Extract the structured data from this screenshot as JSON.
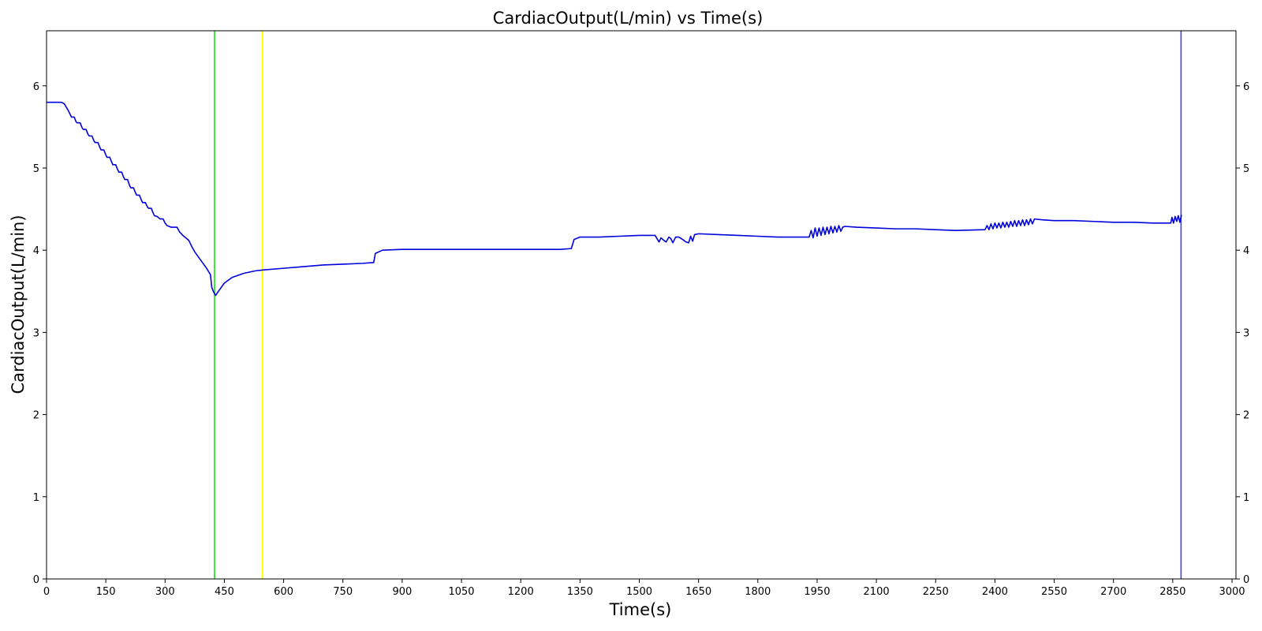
{
  "chart_data": {
    "type": "line",
    "title": "CardiacOutput(L/min) vs Time(s)",
    "xlabel": "Time(s)",
    "ylabel": "CardiacOutput(L/min)",
    "xlim": [
      0,
      3010
    ],
    "ylim": [
      0,
      6.67
    ],
    "x_ticks": [
      0,
      150,
      300,
      450,
      600,
      750,
      900,
      1050,
      1200,
      1350,
      1500,
      1650,
      1800,
      1950,
      2100,
      2250,
      2400,
      2550,
      2700,
      2850,
      3000
    ],
    "y_ticks": [
      0,
      1,
      2,
      3,
      4,
      5,
      6
    ],
    "right_y_ticks": true,
    "grid": false,
    "vertical_lines": [
      {
        "x": 425,
        "color": "#00ee00"
      },
      {
        "x": 546,
        "color": "#ffff00"
      },
      {
        "x": 2871,
        "color": "#4444dd"
      }
    ],
    "series": [
      {
        "color": "#0000dd",
        "x": [
          0,
          38,
          45,
          55,
          60,
          63,
          70,
          75,
          78,
          85,
          90,
          93,
          100,
          105,
          108,
          115,
          120,
          123,
          130,
          135,
          138,
          145,
          150,
          153,
          160,
          165,
          168,
          175,
          180,
          183,
          190,
          195,
          198,
          205,
          210,
          213,
          220,
          225,
          228,
          235,
          240,
          243,
          250,
          255,
          258,
          265,
          270,
          273,
          280,
          285,
          288,
          295,
          300,
          305,
          315,
          330,
          337,
          345,
          360,
          368,
          375,
          390,
          405,
          415,
          418,
          422,
          428,
          435,
          450,
          470,
          500,
          530,
          550,
          600,
          650,
          700,
          750,
          800,
          828,
          832,
          850,
          900,
          1000,
          1100,
          1200,
          1300,
          1328,
          1335,
          1350,
          1400,
          1450,
          1500,
          1540,
          1550,
          1555,
          1562,
          1568,
          1575,
          1580,
          1585,
          1592,
          1600,
          1610,
          1618,
          1625,
          1630,
          1635,
          1640,
          1650,
          1700,
          1750,
          1800,
          1850,
          1930,
          1935,
          1940,
          1945,
          1950,
          1955,
          1960,
          1965,
          1970,
          1975,
          1980,
          1985,
          1990,
          1995,
          2000,
          2005,
          2010,
          2015,
          2020,
          2050,
          2100,
          2150,
          2200,
          2250,
          2300,
          2375,
          2380,
          2385,
          2390,
          2395,
          2400,
          2405,
          2410,
          2415,
          2420,
          2425,
          2430,
          2435,
          2440,
          2445,
          2450,
          2455,
          2460,
          2465,
          2470,
          2475,
          2480,
          2485,
          2490,
          2495,
          2500,
          2520,
          2550,
          2600,
          2650,
          2700,
          2750,
          2800,
          2845,
          2848,
          2852,
          2856,
          2860,
          2864,
          2868,
          2872
        ],
        "values": [
          5.8,
          5.8,
          5.78,
          5.7,
          5.65,
          5.62,
          5.62,
          5.56,
          5.55,
          5.55,
          5.49,
          5.47,
          5.47,
          5.41,
          5.39,
          5.39,
          5.33,
          5.31,
          5.31,
          5.25,
          5.22,
          5.22,
          5.16,
          5.13,
          5.13,
          5.07,
          5.04,
          5.04,
          4.98,
          4.95,
          4.95,
          4.89,
          4.86,
          4.86,
          4.79,
          4.76,
          4.76,
          4.7,
          4.67,
          4.67,
          4.61,
          4.58,
          4.58,
          4.53,
          4.51,
          4.51,
          4.45,
          4.42,
          4.41,
          4.39,
          4.38,
          4.38,
          4.33,
          4.3,
          4.28,
          4.28,
          4.22,
          4.18,
          4.12,
          4.04,
          3.98,
          3.88,
          3.78,
          3.7,
          3.55,
          3.5,
          3.45,
          3.5,
          3.6,
          3.67,
          3.72,
          3.75,
          3.76,
          3.78,
          3.8,
          3.82,
          3.83,
          3.84,
          3.85,
          3.96,
          4.0,
          4.01,
          4.01,
          4.01,
          4.01,
          4.01,
          4.02,
          4.13,
          4.16,
          4.16,
          4.17,
          4.18,
          4.18,
          4.1,
          4.15,
          4.12,
          4.1,
          4.16,
          4.14,
          4.09,
          4.16,
          4.16,
          4.13,
          4.1,
          4.09,
          4.17,
          4.11,
          4.19,
          4.2,
          4.19,
          4.18,
          4.17,
          4.16,
          4.16,
          4.24,
          4.15,
          4.27,
          4.17,
          4.27,
          4.18,
          4.28,
          4.19,
          4.28,
          4.2,
          4.29,
          4.21,
          4.29,
          4.22,
          4.3,
          4.23,
          4.28,
          4.29,
          4.28,
          4.27,
          4.26,
          4.26,
          4.25,
          4.24,
          4.25,
          4.3,
          4.25,
          4.32,
          4.26,
          4.33,
          4.27,
          4.33,
          4.27,
          4.34,
          4.28,
          4.34,
          4.28,
          4.35,
          4.29,
          4.36,
          4.29,
          4.36,
          4.3,
          4.37,
          4.3,
          4.37,
          4.31,
          4.38,
          4.32,
          4.38,
          4.37,
          4.36,
          4.36,
          4.35,
          4.34,
          4.34,
          4.33,
          4.33,
          4.4,
          4.33,
          4.41,
          4.35,
          4.42,
          4.34,
          4.43
        ]
      }
    ]
  }
}
